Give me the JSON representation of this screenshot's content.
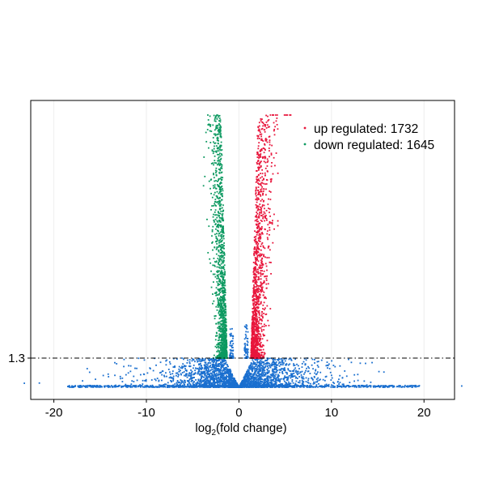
{
  "chart_data": {
    "type": "scatter",
    "xlabel_main": "log",
    "xlabel_sub": "2",
    "xlabel_rest": "(fold change)",
    "ylabel": "",
    "xlim": [
      -22.5,
      23.3
    ],
    "x_ticks": [
      -20,
      -10,
      0,
      10,
      20
    ],
    "x_tick_labels": [
      "-20",
      "-10",
      "0",
      "10",
      "20"
    ],
    "y_tick_labels": [
      "1.3"
    ],
    "threshold": {
      "y": 1.3,
      "style": "dash-dot",
      "label": "1.3"
    },
    "grid": "vertical-light",
    "legend": {
      "placement": "top-right",
      "entries": [
        {
          "key": "up",
          "label": "up regulated: 1732",
          "color": "#e8163c"
        },
        {
          "key": "down",
          "label": "down regulated: 1645",
          "color": "#0c9960"
        }
      ]
    },
    "series": [
      {
        "key": "up",
        "color": "#e8163c",
        "count": 1732
      },
      {
        "key": "down",
        "color": "#0c9960",
        "count": 1645
      },
      {
        "key": "ns",
        "color": "#1a6fcf"
      }
    ]
  }
}
